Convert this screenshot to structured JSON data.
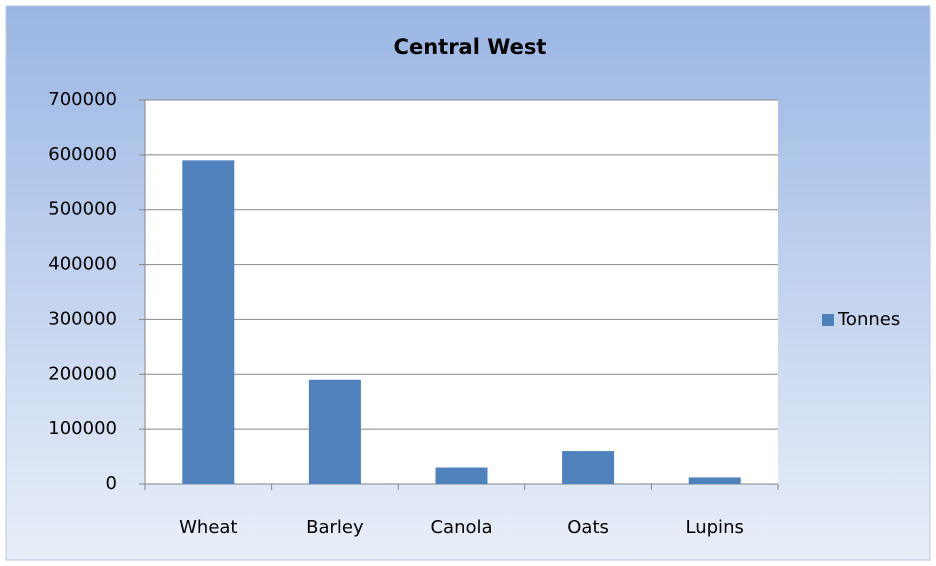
{
  "chart_data": {
    "type": "bar",
    "title": "Central West",
    "categories": [
      "Wheat",
      "Barley",
      "Canola",
      "Oats",
      "Lupins"
    ],
    "series": [
      {
        "name": "Tonnes",
        "color": "#4f81bd",
        "values": [
          590000,
          190000,
          30000,
          60000,
          12000
        ]
      }
    ],
    "ylim": [
      0,
      700000
    ],
    "yticks": [
      0,
      100000,
      200000,
      300000,
      400000,
      500000,
      600000,
      700000
    ],
    "grid": true,
    "legend": "right"
  }
}
